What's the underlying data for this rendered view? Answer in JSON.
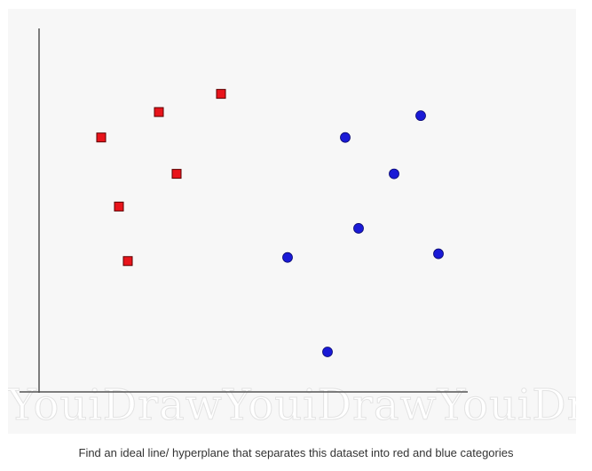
{
  "caption": "Find an ideal line/ hyperplane that separates this dataset into red and blue categories",
  "watermark": "YouiDrawYouiDrawYouiDra",
  "colors": {
    "background": "#f7f7f7",
    "axis": "#555555",
    "red_marker": "#e8141b",
    "blue_marker": "#1a1ad6"
  },
  "chart_data": {
    "type": "scatter",
    "title": "",
    "xlabel": "",
    "ylabel": "",
    "xlim": [
      0,
      100
    ],
    "ylim": [
      0,
      100
    ],
    "grid": false,
    "series": [
      {
        "color": "red",
        "marker": "square",
        "points": [
          {
            "x": 14,
            "y": 70
          },
          {
            "x": 27,
            "y": 77
          },
          {
            "x": 41,
            "y": 82
          },
          {
            "x": 31,
            "y": 60
          },
          {
            "x": 18,
            "y": 51
          },
          {
            "x": 20,
            "y": 36
          }
        ]
      },
      {
        "color": "blue",
        "marker": "circle",
        "points": [
          {
            "x": 69,
            "y": 70
          },
          {
            "x": 86,
            "y": 76
          },
          {
            "x": 80,
            "y": 60
          },
          {
            "x": 72,
            "y": 45
          },
          {
            "x": 56,
            "y": 37
          },
          {
            "x": 90,
            "y": 38
          },
          {
            "x": 65,
            "y": 11
          }
        ]
      }
    ]
  }
}
